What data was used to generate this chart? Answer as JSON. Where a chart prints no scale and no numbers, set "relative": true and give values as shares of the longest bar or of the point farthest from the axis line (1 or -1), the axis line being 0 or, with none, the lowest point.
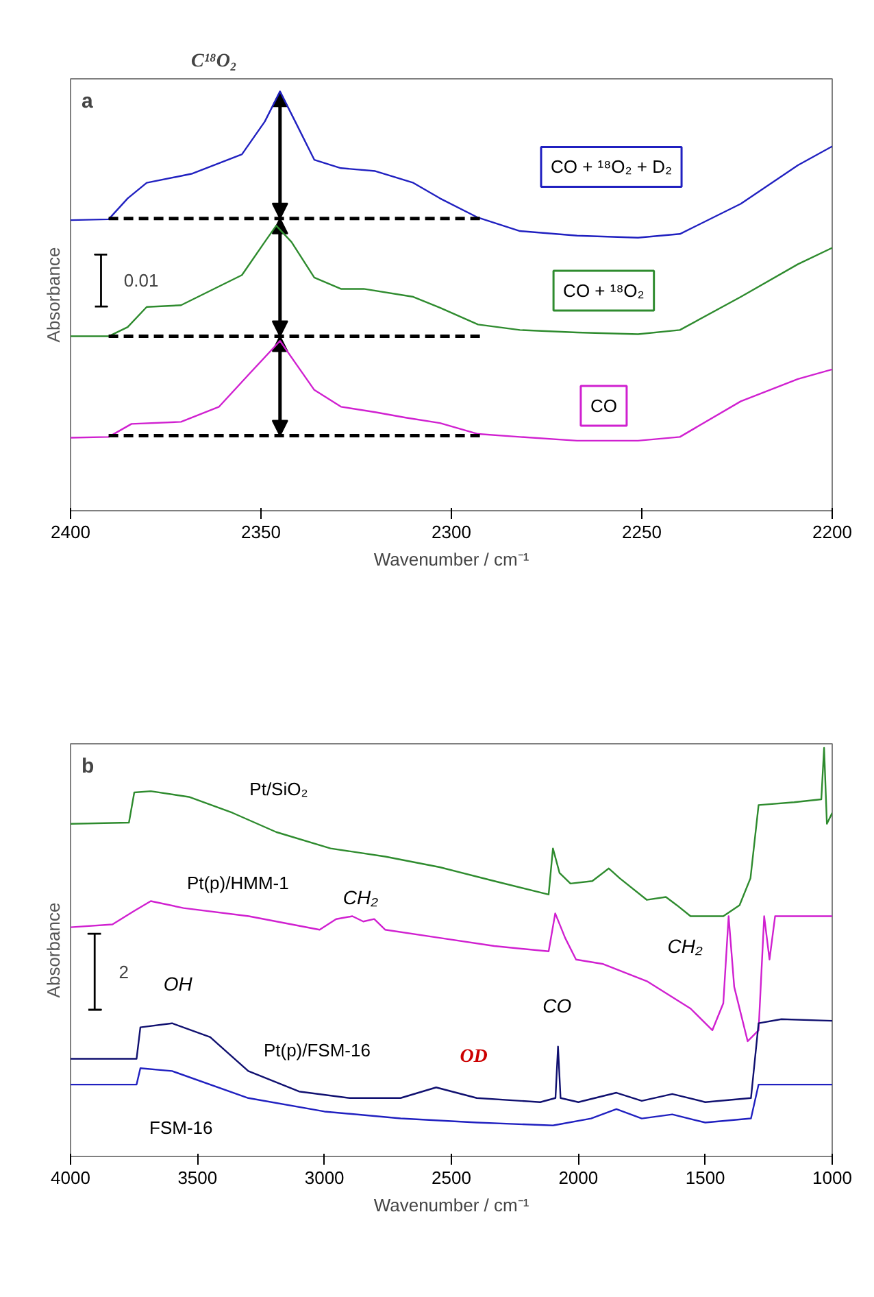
{
  "chart_data": [
    {
      "type": "line",
      "title": "C¹⁸O₂",
      "xlabel": "Wavenumber / cm⁻¹",
      "ylabel": "Absorbance",
      "relative": true,
      "xlim": [
        2400,
        2200
      ],
      "xticks": [
        2400,
        2350,
        2300,
        2250,
        2200
      ],
      "tick_labels": "x",
      "annotations": [
        "a",
        "0.01"
      ],
      "series": [
        {
          "type": "line",
          "color": "#000000",
          "x": [
            2393.6,
            2390.4,
            2392,
            2392,
            2393.6,
            2390.4
          ],
          "values": [
            0.487,
            0.487,
            0.487,
            0.611,
            0.611,
            0.611
          ]
        },
        {
          "name": "CO + ¹⁸O₂ + D₂",
          "color": "#2020c0",
          "x": [
            2400,
            2390,
            2385,
            2380,
            2368,
            2355,
            2349,
            2345,
            2341,
            2336,
            2329,
            2320,
            2310,
            2303,
            2293,
            2282,
            2267,
            2251,
            2240,
            2224,
            2209,
            2200
          ],
          "values": [
            0.693,
            0.695,
            0.745,
            0.782,
            0.804,
            0.85,
            0.928,
            1.0,
            0.928,
            0.837,
            0.817,
            0.81,
            0.782,
            0.745,
            0.699,
            0.667,
            0.656,
            0.651,
            0.66,
            0.732,
            0.824,
            0.869
          ]
        },
        {
          "name": "CO + ¹⁸O₂",
          "color": "#2e8b2e",
          "x": [
            2400,
            2390,
            2385,
            2380,
            2371,
            2355,
            2349,
            2346,
            2342,
            2336,
            2329,
            2323,
            2310,
            2303,
            2293,
            2282,
            2267,
            2251,
            2240,
            2224,
            2209,
            2200
          ],
          "values": [
            0.416,
            0.416,
            0.438,
            0.486,
            0.49,
            0.562,
            0.641,
            0.68,
            0.641,
            0.556,
            0.529,
            0.529,
            0.51,
            0.484,
            0.444,
            0.431,
            0.425,
            0.421,
            0.431,
            0.51,
            0.588,
            0.627
          ]
        },
        {
          "name": "CO",
          "color": "#d020d0",
          "x": [
            2400,
            2390,
            2384,
            2371,
            2361,
            2353,
            2345,
            2341,
            2336,
            2329,
            2320,
            2312,
            2303,
            2293,
            2282,
            2267,
            2251,
            2240,
            2224,
            2209,
            2200
          ],
          "values": [
            0.174,
            0.176,
            0.207,
            0.212,
            0.248,
            0.327,
            0.405,
            0.353,
            0.288,
            0.248,
            0.235,
            0.222,
            0.209,
            0.183,
            0.176,
            0.167,
            0.167,
            0.176,
            0.261,
            0.314,
            0.337
          ]
        },
        {
          "type": "line",
          "color": "#000000",
          "line_style": "dashed",
          "x": [
            2390,
            2292
          ],
          "values": [
            0.697,
            0.697
          ]
        },
        {
          "type": "line",
          "color": "#000000",
          "line_style": "dashed",
          "x": [
            2390,
            2292
          ],
          "values": [
            0.416,
            0.416
          ]
        },
        {
          "type": "line",
          "color": "#000000",
          "line_style": "dashed",
          "x": [
            2390,
            2292
          ],
          "values": [
            0.179,
            0.179
          ]
        }
      ]
    },
    {
      "type": "line",
      "xlabel": "Wavenumber / cm⁻¹",
      "ylabel": "Absorbance",
      "relative": true,
      "xlim": [
        4000,
        1000
      ],
      "xticks": [
        4000,
        3500,
        3000,
        2500,
        2000,
        1500,
        1000
      ],
      "tick_labels": "x",
      "annotations": [
        "b",
        "2",
        "OH",
        "CH₂",
        "CH₂",
        "CO",
        "OD"
      ],
      "series": [
        {
          "type": "line",
          "color": "#000000",
          "x": [
            3930,
            3880,
            3905,
            3905,
            3930,
            3880
          ],
          "values": [
            0.359,
            0.359,
            0.359,
            0.545,
            0.545,
            0.545
          ]
        },
        {
          "name": "Pt/SiO₂",
          "color": "#2e8b2e",
          "x": [
            4000,
            3770,
            3749,
            3684,
            3534,
            3362,
            3190,
            2976,
            2761,
            2546,
            2331,
            2117,
            2100,
            2074,
            2031,
            1945,
            1880,
            1837,
            1730,
            1655,
            1612,
            1558,
            1429,
            1365,
            1322,
            1290,
            1150,
            1043,
            1032,
            1021,
            1000
          ],
          "values": [
            0.814,
            0.817,
            0.891,
            0.894,
            0.88,
            0.841,
            0.794,
            0.754,
            0.734,
            0.708,
            0.674,
            0.641,
            0.754,
            0.694,
            0.668,
            0.674,
            0.705,
            0.681,
            0.628,
            0.635,
            0.615,
            0.588,
            0.588,
            0.615,
            0.681,
            0.86,
            0.867,
            0.874,
            1.0,
            0.814,
            0.841
          ]
        },
        {
          "name": "Pt(p)/HMM-1",
          "color": "#d020d0",
          "x": [
            4000,
            3835,
            3749,
            3684,
            3555,
            3298,
            3019,
            2954,
            2890,
            2847,
            2804,
            2761,
            2546,
            2331,
            2117,
            2091,
            2052,
            2009,
            1902,
            1730,
            1558,
            1472,
            1429,
            1408,
            1386,
            1333,
            1290,
            1268,
            1247,
            1225,
            1193,
            1000
          ],
          "values": [
            0.561,
            0.568,
            0.601,
            0.625,
            0.608,
            0.588,
            0.555,
            0.581,
            0.588,
            0.575,
            0.581,
            0.555,
            0.535,
            0.515,
            0.502,
            0.595,
            0.535,
            0.482,
            0.471,
            0.429,
            0.362,
            0.309,
            0.375,
            0.588,
            0.415,
            0.282,
            0.309,
            0.588,
            0.482,
            0.588,
            0.588,
            0.588
          ]
        },
        {
          "name": "Pt(p)/FSM-16",
          "color": "#101070",
          "x": [
            4000,
            3740,
            3725,
            3600,
            3450,
            3300,
            3100,
            2900,
            2700,
            2560,
            2400,
            2150,
            2090,
            2080,
            2070,
            2000,
            1850,
            1750,
            1630,
            1500,
            1320,
            1290,
            1200,
            1000
          ],
          "values": [
            0.239,
            0.239,
            0.316,
            0.326,
            0.292,
            0.209,
            0.159,
            0.143,
            0.143,
            0.169,
            0.143,
            0.133,
            0.143,
            0.269,
            0.143,
            0.133,
            0.156,
            0.136,
            0.153,
            0.133,
            0.143,
            0.326,
            0.336,
            0.332
          ]
        },
        {
          "name": "FSM-16",
          "color": "#2020c0",
          "x": [
            4000,
            3740,
            3725,
            3600,
            3300,
            3000,
            2700,
            2400,
            2100,
            1950,
            1850,
            1750,
            1630,
            1500,
            1320,
            1290,
            1000
          ],
          "values": [
            0.176,
            0.176,
            0.216,
            0.209,
            0.143,
            0.11,
            0.093,
            0.083,
            0.076,
            0.093,
            0.116,
            0.093,
            0.103,
            0.083,
            0.093,
            0.176,
            0.176
          ]
        }
      ]
    }
  ]
}
